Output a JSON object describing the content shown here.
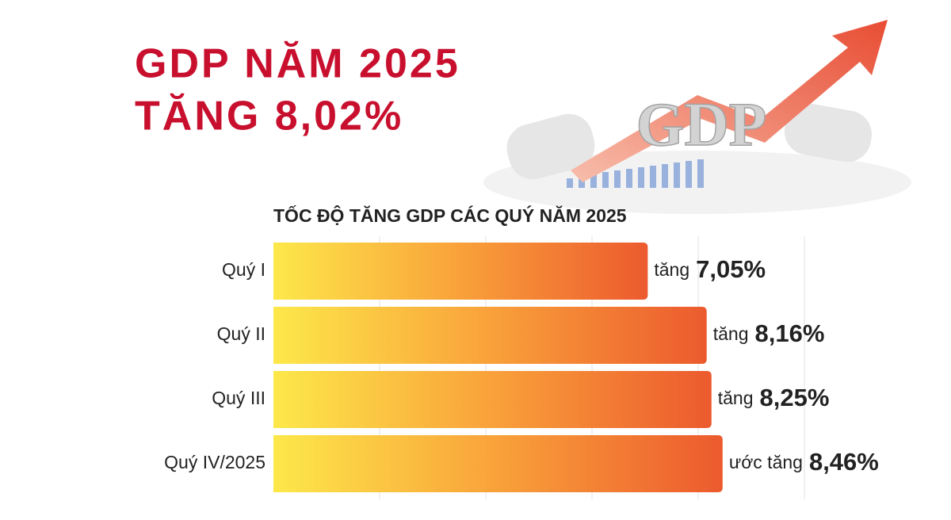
{
  "chart_data": {
    "type": "bar",
    "orientation": "horizontal",
    "title": "GDP NĂM 2025",
    "subtitle": "TĂNG 8,02%",
    "image_label": "GDP",
    "chart_title": "TỐC ĐỘ TĂNG GDP CÁC QUÝ NĂM 2025",
    "categories": [
      "Quý I",
      "Quý II",
      "Quý III",
      "Quý IV/2025"
    ],
    "values": [
      7.05,
      8.16,
      8.25,
      8.46
    ],
    "value_labels": [
      "7,05%",
      "8,16%",
      "8,25%",
      "8,46%"
    ],
    "value_prefixes": [
      "tăng",
      "tăng",
      "tăng",
      "ước tăng"
    ],
    "colors": [
      "#fde84a",
      "#f9a13a",
      "#ec5a2e"
    ],
    "xlim": [
      0,
      10
    ],
    "gridlines": [
      2,
      4,
      6,
      8,
      10
    ]
  }
}
